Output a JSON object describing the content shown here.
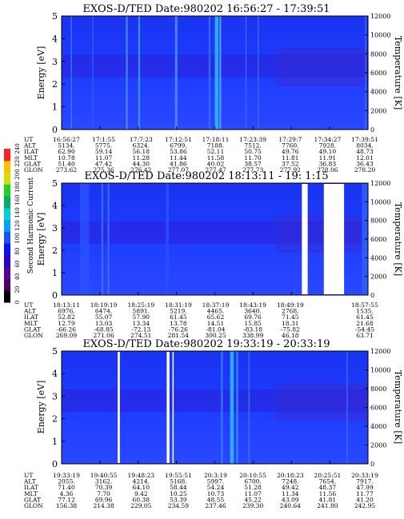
{
  "colorbar": {
    "label": "Second Harmonic Current",
    "ticks": [
      "0",
      "20",
      "40",
      "60",
      "80",
      "100",
      "120",
      "140",
      "160",
      "180",
      "200",
      "220",
      "240"
    ],
    "colors": [
      "#000000",
      "#4a0066",
      "#5a00a0",
      "#2a00d0",
      "#0a10ff",
      "#1a50ff",
      "#00a0ff",
      "#00d0d0",
      "#00b060",
      "#20d020",
      "#d0e000",
      "#ffc000",
      "#ff2020"
    ]
  },
  "chart_data": [
    {
      "type": "heatmap",
      "title": "EXOS-D/TED  Date:980202  16:56:27 - 17:39:51",
      "ylabel": "Energy [eV]",
      "y2label": "Temperature [K]",
      "ylim": [
        0,
        5
      ],
      "y2lim": [
        0,
        12000
      ],
      "yticks": [
        "0",
        "1",
        "2",
        "3",
        "4",
        "5"
      ],
      "y2ticks": [
        "0",
        "2000",
        "4000",
        "6000",
        "8000",
        "10000",
        "12000"
      ],
      "xlabels": [
        "16:56:27",
        "17:1:55",
        "17:7:23",
        "17:12:51",
        "17:18:11",
        "17:23:39",
        "17:29:7",
        "17:34:27",
        "17:39:51"
      ],
      "rows": [
        {
          "name": "UT",
          "values": [
            "16:56:27",
            "17:1:55",
            "17:7:23",
            "17:12:51",
            "17:18:11",
            "17:23:39",
            "17:29:7",
            "17:34:27",
            "17:39:51"
          ]
        },
        {
          "name": "ALT",
          "values": [
            "5134.",
            "5775.",
            "6324.",
            "6799.",
            "7188.",
            "7512.",
            "7760.",
            "7928.",
            "8034."
          ]
        },
        {
          "name": "ILAT",
          "values": [
            "62.90",
            "59.14",
            "56.18",
            "53.86",
            "52.11",
            "50.75",
            "49.76",
            "49.10",
            "48.73"
          ]
        },
        {
          "name": "MLT",
          "values": [
            "10.78",
            "11.07",
            "11.28",
            "11.44",
            "11.58",
            "11.70",
            "11.81",
            "11.91",
            "12.01"
          ]
        },
        {
          "name": "GLAT",
          "values": [
            "51.40",
            "47.42",
            "44.30",
            "41.86",
            "40.02",
            "38.57",
            "37.52",
            "36.83",
            "36.43"
          ]
        },
        {
          "name": "GLON",
          "values": [
            "273.62",
            "275.36",
            "276.42",
            "277.07",
            "277.47",
            "277.73",
            "277.92",
            "278.06",
            "278.20"
          ]
        }
      ]
    },
    {
      "type": "heatmap",
      "title": "EXOS-D/TED  Date:980202  18:13:11 - 19: 1:15",
      "ylabel": "Energy [eV]",
      "y2label": "Temperature [K]",
      "ylim": [
        0,
        5
      ],
      "y2lim": [
        0,
        12000
      ],
      "yticks": [
        "0",
        "1",
        "2",
        "3",
        "4",
        "5"
      ],
      "y2ticks": [
        "0",
        "2000",
        "4000",
        "6000",
        "8000",
        "10000",
        "12000"
      ],
      "xlabels": [
        "18:13:11",
        "18:19:19",
        "18:25:19",
        "18:31:19",
        "18:37:19",
        "18:43:19",
        "18:49:19",
        "",
        "18:57:55"
      ],
      "rows": [
        {
          "name": "UT",
          "values": [
            "18:13:11",
            "18:19:19",
            "18:25:19",
            "18:31:19",
            "18:37:19",
            "18:43:19",
            "18:49:19",
            "",
            "18:57:55"
          ]
        },
        {
          "name": "ALT",
          "values": [
            "6976.",
            "6474.",
            "5891.",
            "5219.",
            "4465.",
            "3640.",
            "2768.",
            "",
            "1535."
          ]
        },
        {
          "name": "ILAT",
          "values": [
            "52.82",
            "55.07",
            "57.90",
            "61.45",
            "65.62",
            "69.76",
            "71.45",
            "",
            "61.45"
          ]
        },
        {
          "name": "MLT",
          "values": [
            "12.79",
            "13.03",
            "13.34",
            "13.78",
            "14.51",
            "15.85",
            "18.31",
            "",
            "21.68"
          ]
        },
        {
          "name": "GLAT",
          "values": [
            "-66.26",
            "-68.85",
            "-72.13",
            "-76.26",
            "-81.04",
            "-83.18",
            "-75.82",
            "",
            "-54.45"
          ]
        },
        {
          "name": "GLON",
          "values": [
            "269.09",
            "271.06",
            "274.51",
            "281.54",
            "300.25",
            "338.99",
            "46.18",
            "",
            "63.71"
          ]
        }
      ]
    },
    {
      "type": "heatmap",
      "title": "EXOS-D/TED  Date:980202  19:33:19 - 20:33:19",
      "ylabel": "Energy [eV]",
      "y2label": "Temperature [K]",
      "ylim": [
        0,
        5
      ],
      "y2lim": [
        0,
        12000
      ],
      "yticks": [
        "0",
        "1",
        "2",
        "3",
        "4",
        "5"
      ],
      "y2ticks": [
        "0",
        "2000",
        "4000",
        "6000",
        "8000",
        "10000",
        "12000"
      ],
      "xlabels": [
        "19:33:19",
        "19:40:55",
        "19:48:23",
        "19:55:51",
        "20:3:19",
        "20:10:55",
        "20:18:23",
        "20:25:51",
        "20:33:19"
      ],
      "rows": [
        {
          "name": "UT",
          "values": [
            "19:33:19",
            "19:40:55",
            "19:48:23",
            "19:55:51",
            "20:3:19",
            "20:10:55",
            "20:18:23",
            "20:25:51",
            "20:33:19"
          ]
        },
        {
          "name": "ALT",
          "values": [
            "2055.",
            "3162.",
            "4214.",
            "5168.",
            "5997.",
            "6700.",
            "7248.",
            "7654.",
            "7917."
          ]
        },
        {
          "name": "ILAT",
          "values": [
            "71.40",
            "70.39",
            "64.10",
            "58.44",
            "54.24",
            "51.28",
            "49.42",
            "48.37",
            "47.99"
          ]
        },
        {
          "name": "MLT",
          "values": [
            "4.36",
            "7.70",
            "9.42",
            "10.25",
            "10.73",
            "11.07",
            "11.34",
            "11.56",
            "11.77"
          ]
        },
        {
          "name": "GLAT",
          "values": [
            "77.12",
            "69.96",
            "60.38",
            "53.39",
            "48.55",
            "45.22",
            "43.09",
            "41.81",
            "41.20"
          ]
        },
        {
          "name": "GLON",
          "values": [
            "156.38",
            "214.38",
            "229.05",
            "234.59",
            "237.46",
            "239.30",
            "240.64",
            "241.80",
            "242.95"
          ]
        }
      ]
    }
  ]
}
